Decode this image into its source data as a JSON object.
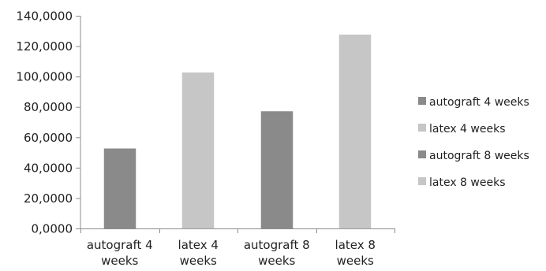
{
  "chart_data": {
    "type": "bar",
    "categories": [
      "autograft 4 weeks",
      "latex 4 weeks",
      "autograft 8 weeks",
      "latex 8 weeks"
    ],
    "category_labels": [
      [
        "autograft 4",
        "weeks"
      ],
      [
        "latex 4",
        "weeks"
      ],
      [
        "autograft 8",
        "weeks"
      ],
      [
        "latex 8",
        "weeks"
      ]
    ],
    "series": [
      {
        "name": "autograft 4 weeks",
        "color": "#8a8a8a",
        "values": [
          52.5,
          null,
          null,
          null
        ]
      },
      {
        "name": "latex 4 weeks",
        "color": "#c6c6c6",
        "values": [
          null,
          102.5,
          null,
          null
        ]
      },
      {
        "name": "autograft 8 weeks",
        "color": "#8a8a8a",
        "values": [
          null,
          null,
          77.0,
          null
        ]
      },
      {
        "name": "latex 8 weeks",
        "color": "#c6c6c6",
        "values": [
          null,
          null,
          null,
          127.5
        ]
      }
    ],
    "title": "",
    "xlabel": "",
    "ylabel": "",
    "ylim": [
      0,
      140
    ],
    "yticks": [
      0,
      20,
      40,
      60,
      80,
      100,
      120,
      140
    ],
    "ytick_labels": [
      "0,0000",
      "20,0000",
      "40,0000",
      "60,0000",
      "80,0000",
      "100,0000",
      "120,0000",
      "140,0000"
    ],
    "grid": false,
    "legend_position": "right"
  }
}
